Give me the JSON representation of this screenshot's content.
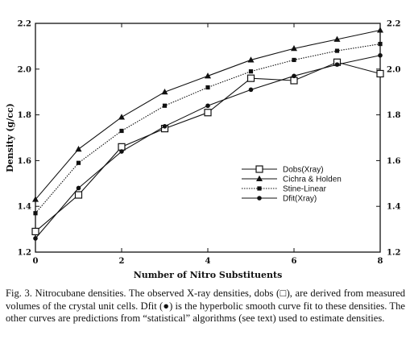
{
  "chart_data": {
    "type": "line",
    "title": "",
    "xlabel": "Number of Nitro Substituents",
    "ylabel": "Density (g/cc)",
    "xlim": [
      0,
      8
    ],
    "ylim": [
      1.2,
      2.2
    ],
    "x_ticks": [
      "0",
      "2",
      "4",
      "6",
      "8"
    ],
    "y_ticks": [
      "1.2",
      "1.4",
      "1.6",
      "1.8",
      "2.0",
      "2.2"
    ],
    "grid": false,
    "legend_position": "center-right",
    "x": [
      0,
      1,
      2,
      3,
      4,
      5,
      6,
      7,
      8
    ],
    "series": [
      {
        "name": "Dobs(Xray)",
        "marker": "open-square",
        "line": "solid",
        "color": "#111111",
        "values": [
          1.29,
          1.45,
          1.66,
          1.74,
          1.81,
          1.96,
          1.95,
          2.03,
          1.98
        ]
      },
      {
        "name": "Cichra & Holden",
        "marker": "filled-triangle",
        "line": "solid",
        "color": "#111111",
        "values": [
          1.43,
          1.65,
          1.79,
          1.9,
          1.97,
          2.04,
          2.09,
          2.13,
          2.17
        ]
      },
      {
        "name": "Stine-Linear",
        "marker": "filled-square",
        "line": "dotted",
        "color": "#111111",
        "values": [
          1.37,
          1.59,
          1.73,
          1.84,
          1.92,
          1.99,
          2.04,
          2.08,
          2.11
        ]
      },
      {
        "name": "Dfit(Xray)",
        "marker": "filled-circle",
        "line": "solid",
        "color": "#111111",
        "values": [
          1.26,
          1.48,
          1.64,
          1.75,
          1.84,
          1.91,
          1.97,
          2.02,
          2.06
        ]
      }
    ]
  },
  "caption": "Fig. 3. Nitrocubane densities. The observed X-ray densities, dobs (□), are derived from measured volumes of the crystal unit cells. Dfit (●) is the hyperbolic smooth curve fit to these densities. The other curves are predictions from “statistical” algorithms (see text) used to estimate densities."
}
